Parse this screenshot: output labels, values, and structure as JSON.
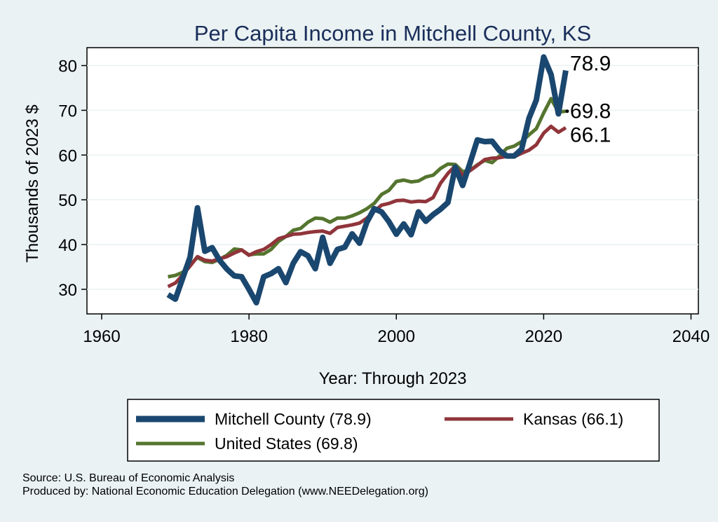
{
  "chart_data": {
    "type": "line",
    "title": "Per Capita Income in Mitchell County, KS",
    "xlabel": "Year: Through 2023",
    "ylabel": "Thousands of 2023 $",
    "xlim": [
      1958,
      2041
    ],
    "ylim": [
      24.5,
      84
    ],
    "x_ticks": [
      1960,
      1980,
      2000,
      2020,
      2040
    ],
    "y_ticks": [
      30,
      40,
      50,
      60,
      70,
      80
    ],
    "grid": true,
    "legend_placement": "bottom",
    "x": [
      1969,
      1970,
      1971,
      1972,
      1973,
      1974,
      1975,
      1976,
      1977,
      1978,
      1979,
      1980,
      1981,
      1982,
      1983,
      1984,
      1985,
      1986,
      1987,
      1988,
      1989,
      1990,
      1991,
      1992,
      1993,
      1994,
      1995,
      1996,
      1997,
      1998,
      1999,
      2000,
      2001,
      2002,
      2003,
      2004,
      2005,
      2006,
      2007,
      2008,
      2009,
      2010,
      2011,
      2012,
      2013,
      2014,
      2015,
      2016,
      2017,
      2018,
      2019,
      2020,
      2021,
      2022,
      2023
    ],
    "series": [
      {
        "name": "Mitchell County (78.9)",
        "color": "#1a476f",
        "values": [
          28.8,
          27.8,
          32.5,
          37.2,
          48.2,
          38.5,
          39.3,
          36.5,
          34.5,
          33.0,
          32.8,
          30.0,
          27.0,
          32.8,
          33.5,
          34.6,
          31.5,
          35.8,
          38.4,
          37.5,
          34.6,
          41.6,
          35.8,
          38.9,
          39.4,
          42.4,
          40.3,
          45.0,
          48.0,
          47.3,
          45.1,
          42.3,
          44.6,
          42.2,
          47.3,
          45.2,
          46.7,
          47.9,
          49.4,
          57.3,
          53.2,
          58.2,
          63.4,
          63.0,
          63.1,
          61.0,
          59.8,
          59.8,
          61.3,
          68.2,
          72.3,
          81.9,
          78.0,
          69.2,
          78.9
        ],
        "end_label": "78.9"
      },
      {
        "name": "Kansas (66.1)",
        "color": "#90353b",
        "values": [
          30.6,
          31.4,
          33.2,
          35.2,
          37.3,
          36.5,
          36.3,
          36.8,
          37.3,
          38.1,
          38.8,
          37.6,
          38.4,
          38.9,
          40.0,
          41.3,
          41.8,
          42.3,
          42.4,
          42.7,
          42.9,
          43.0,
          42.5,
          43.8,
          44.1,
          44.4,
          44.8,
          45.9,
          47.4,
          48.8,
          49.2,
          49.8,
          49.9,
          49.5,
          49.7,
          49.6,
          50.5,
          53.7,
          55.9,
          57.6,
          55.5,
          56.5,
          57.7,
          59.0,
          59.3,
          59.4,
          59.7,
          59.6,
          60.4,
          61.1,
          62.3,
          64.9,
          66.4,
          65.1,
          66.1
        ],
        "end_label": "66.1"
      },
      {
        "name": "United States (69.8)",
        "color": "#55752f",
        "values": [
          32.8,
          33.1,
          33.8,
          35.5,
          37.1,
          36.2,
          36.0,
          36.7,
          37.6,
          39.0,
          38.8,
          37.7,
          37.9,
          37.9,
          38.9,
          40.7,
          41.8,
          43.2,
          43.6,
          45.0,
          45.9,
          45.8,
          45.0,
          45.9,
          45.9,
          46.4,
          47.1,
          48.0,
          49.2,
          51.2,
          52.1,
          54.1,
          54.4,
          54.0,
          54.2,
          55.1,
          55.5,
          57.0,
          58.0,
          57.9,
          56.3,
          56.6,
          57.8,
          58.8,
          58.3,
          59.8,
          61.5,
          62.0,
          63.0,
          64.5,
          65.9,
          69.4,
          72.6,
          69.6,
          69.8
        ],
        "end_label": "69.8"
      }
    ]
  },
  "legend": {
    "items": [
      "Mitchell County (78.9)",
      "Kansas (66.1)",
      "United States (69.8)"
    ]
  },
  "footer": {
    "source": "Source: U.S. Bureau of Economic Analysis",
    "produced_by": "Produced by: National Economic Education Delegation (www.NEEDelegation.org)"
  }
}
